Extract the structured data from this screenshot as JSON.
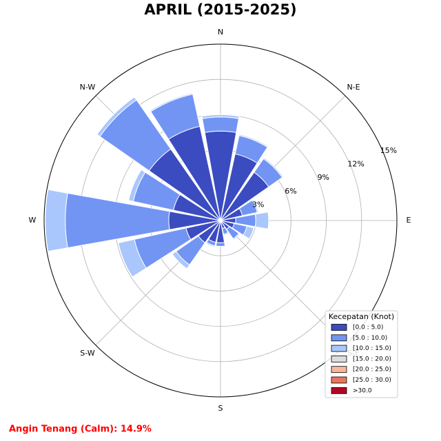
{
  "chart_data": {
    "type": "windrose",
    "title": "APRIL (2015-2025)",
    "direction_labels": [
      "N",
      "N-E",
      "E",
      "S-E",
      "S",
      "S-W",
      "W",
      "N-W"
    ],
    "ylim": [
      0,
      15
    ],
    "yticks": [
      {
        "value": 3,
        "label": "3%"
      },
      {
        "value": 6,
        "label": "6%"
      },
      {
        "value": 9,
        "label": "9%"
      },
      {
        "value": 12,
        "label": "12%"
      },
      {
        "value": 15,
        "label": "15%"
      }
    ],
    "grid": true,
    "legend_title": "Kecepatan (Knot)",
    "legend_position": "lower right",
    "series": [
      {
        "name": "[0.0 : 5.0)",
        "color": "#3b4cc0",
        "values": [
          7.6,
          5.8,
          5.0,
          1.9,
          1.3,
          1.2,
          0.9,
          0.7,
          1.9,
          1.9,
          2.3,
          3.0,
          4.4,
          4.1,
          7.4,
          8.2
        ]
      },
      {
        "name": "[5.0 : 10.0)",
        "color": "#7295f4",
        "values": [
          1.2,
          1.6,
          1.4,
          1.3,
          1.7,
          1.1,
          1.0,
          0.5,
          0.3,
          0.3,
          2.3,
          4.5,
          8.8,
          3.5,
          5.1,
          2.8
        ]
      },
      {
        "name": "[10.0 : 15.0)",
        "color": "#aac7fd",
        "values": [
          0.2,
          0.1,
          0.1,
          0.1,
          1.1,
          0.6,
          0.1,
          0.1,
          0.0,
          0.1,
          0.4,
          1.4,
          1.7,
          0.4,
          0.3,
          0.1
        ]
      },
      {
        "name": "[15.0 : 20.0)",
        "color": "#dddcdc",
        "values": [
          0,
          0,
          0,
          0,
          0,
          0,
          0,
          0,
          0,
          0,
          0,
          0,
          0,
          0,
          0,
          0
        ]
      },
      {
        "name": "[20.0 : 25.0)",
        "color": "#f7b89c",
        "values": [
          0,
          0,
          0,
          0,
          0,
          0,
          0,
          0,
          0,
          0,
          0,
          0,
          0,
          0,
          0,
          0
        ]
      },
      {
        "name": "[25.0 : 30.0)",
        "color": "#e8765c",
        "values": [
          0,
          0,
          0,
          0,
          0,
          0,
          0,
          0,
          0,
          0,
          0,
          0,
          0,
          0,
          0,
          0
        ]
      },
      {
        "name": ">30.0",
        "color": "#b40426",
        "values": [
          0,
          0,
          0,
          0,
          0,
          0,
          0,
          0,
          0,
          0,
          0,
          0,
          0,
          0,
          0,
          0
        ]
      }
    ],
    "calm_note": "Angin Tenang (Calm): 14.9%"
  }
}
